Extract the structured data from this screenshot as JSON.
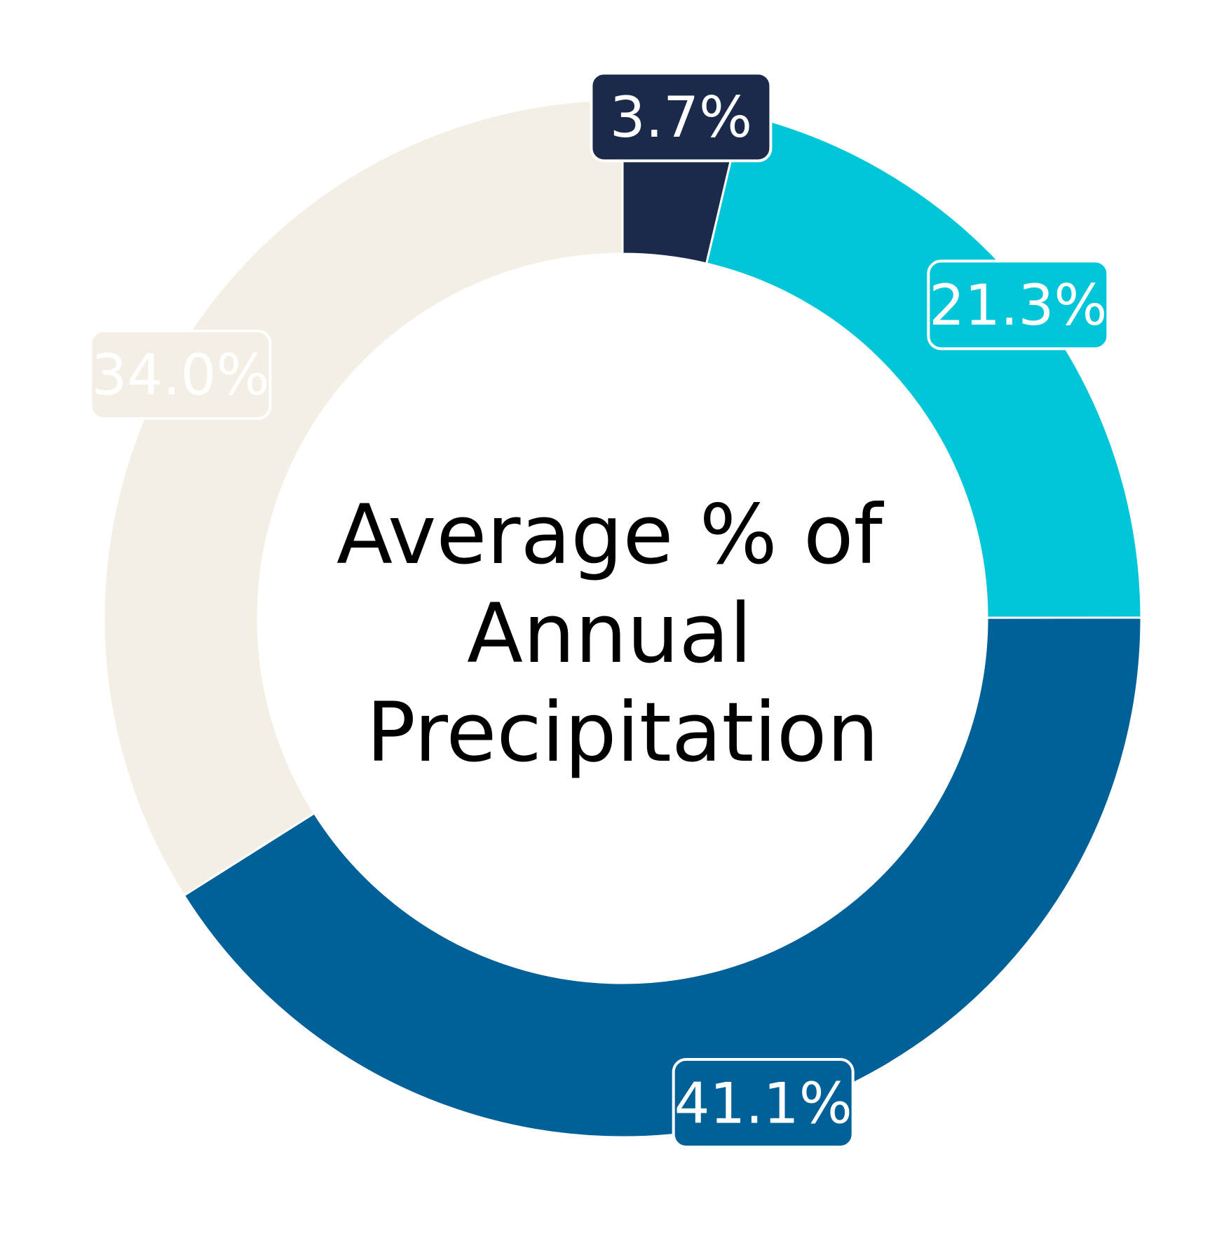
{
  "chart_data": {
    "type": "pie",
    "donut": true,
    "center_title_lines": [
      "Average % of",
      "Annual",
      "Precipitation"
    ],
    "slices": [
      {
        "value": 3.7,
        "label": "3.7%",
        "color": "#1b2a4a"
      },
      {
        "value": 21.3,
        "label": "21.3%",
        "color": "#00c6d7"
      },
      {
        "value": 41.1,
        "label": "41.1%",
        "color": "#006199"
      },
      {
        "value": 34.0,
        "label": "34.0%",
        "color": "#f3efe4"
      }
    ],
    "start_angle": "12 o'clock",
    "direction": "clockwise"
  }
}
